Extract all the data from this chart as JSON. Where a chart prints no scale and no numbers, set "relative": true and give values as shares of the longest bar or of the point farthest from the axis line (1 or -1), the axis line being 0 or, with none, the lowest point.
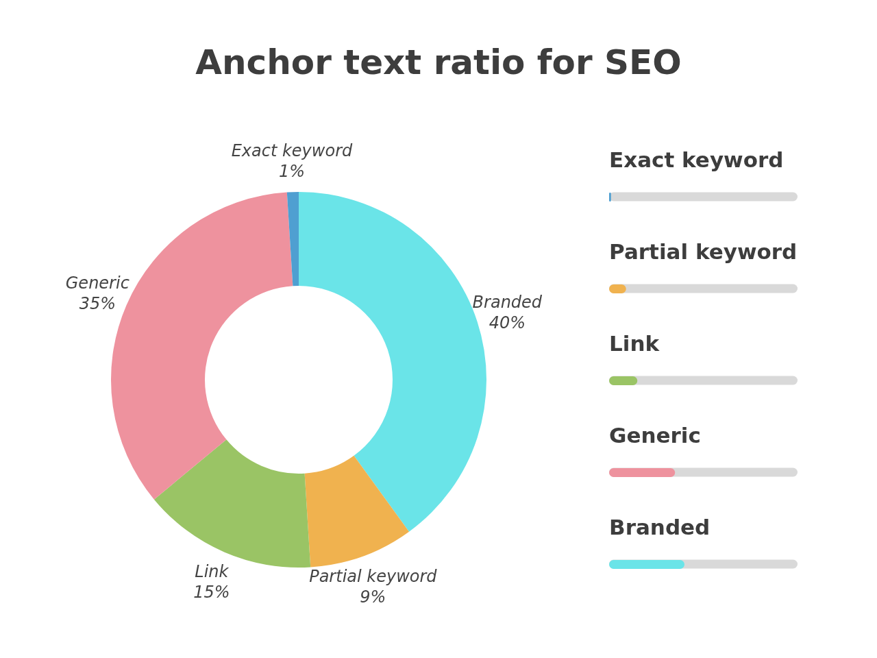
{
  "chart_data": [
    {
      "type": "donut",
      "title": "Anchor text ratio for SEO",
      "categories": [
        "Branded",
        "Partial keyword",
        "Link",
        "Generic",
        "Exact keyword"
      ],
      "values": [
        40,
        9,
        15,
        35,
        1
      ],
      "value_labels": [
        "40%",
        "9%",
        "15%",
        "35%",
        "1%"
      ],
      "colors": [
        "#6ae4e8",
        "#f0b24f",
        "#9ac465",
        "#ee929e",
        "#4f9fd1"
      ]
    },
    {
      "type": "bar",
      "orientation": "horizontal",
      "relative": true,
      "categories": [
        "Exact keyword",
        "Partial keyword",
        "Link",
        "Generic",
        "Branded"
      ],
      "values": [
        0.025,
        0.225,
        0.375,
        0.875,
        1
      ],
      "colors": [
        "#4f9fd1",
        "#f0b24f",
        "#9ac465",
        "#ee929e",
        "#6ae4e8"
      ]
    }
  ]
}
